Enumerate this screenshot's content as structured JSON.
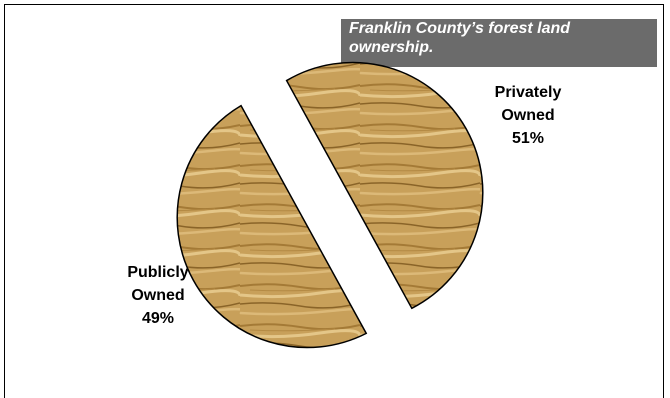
{
  "chart_data": {
    "type": "pie",
    "title": "Franklin County’s forest land ownership.",
    "slices": [
      {
        "label_line1": "Privately",
        "label_line2": "Owned",
        "value": 51,
        "value_label": "51%"
      },
      {
        "label_line1": "Publicly",
        "label_line2": "Owned",
        "value": 49,
        "value_label": "49%"
      }
    ],
    "fill": "wood-grain texture",
    "exploded": true,
    "colors": {
      "title_bg": "#6b6b6b",
      "wood_base": "#c8a05a",
      "wood_dark": "#8a6428",
      "wood_light": "#e4c688"
    }
  }
}
